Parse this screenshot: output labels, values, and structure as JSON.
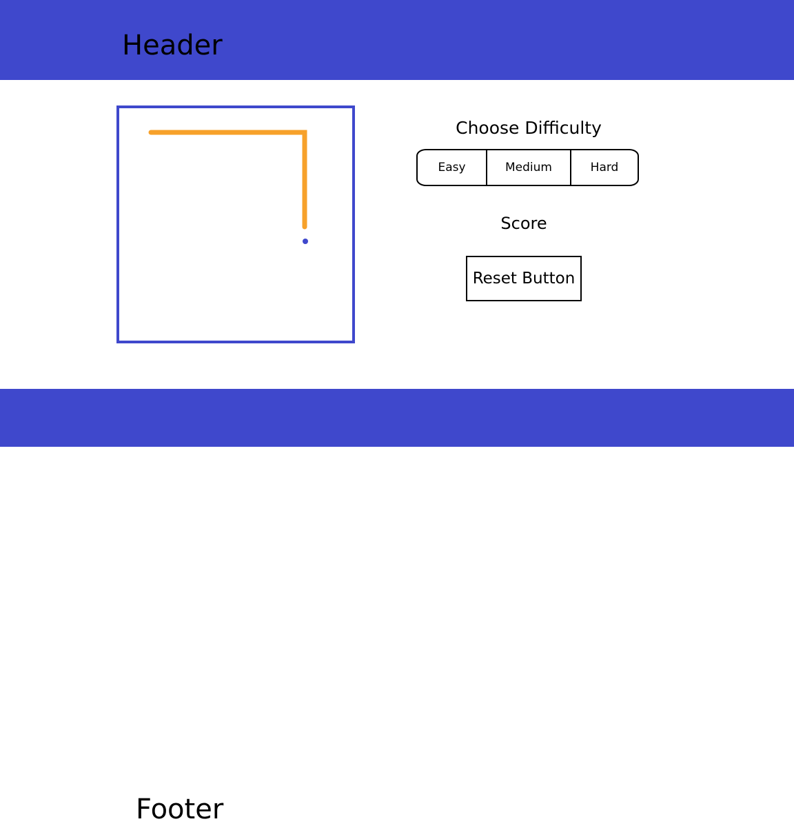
{
  "colors": {
    "brand": "#3f48cc",
    "snake": "#f7a12a",
    "food": "#3f48cc",
    "background": "#ffffff",
    "text": "#000000"
  },
  "header": {
    "title": "Header"
  },
  "footer": {
    "title": "Footer"
  },
  "game": {
    "snake_color_name": "orange",
    "food_color_name": "blue"
  },
  "difficulty": {
    "title": "Choose Difficulty",
    "options": [
      "Easy",
      "Medium",
      "Hard"
    ]
  },
  "score": {
    "label": "Score"
  },
  "reset": {
    "label": "Reset Button"
  }
}
